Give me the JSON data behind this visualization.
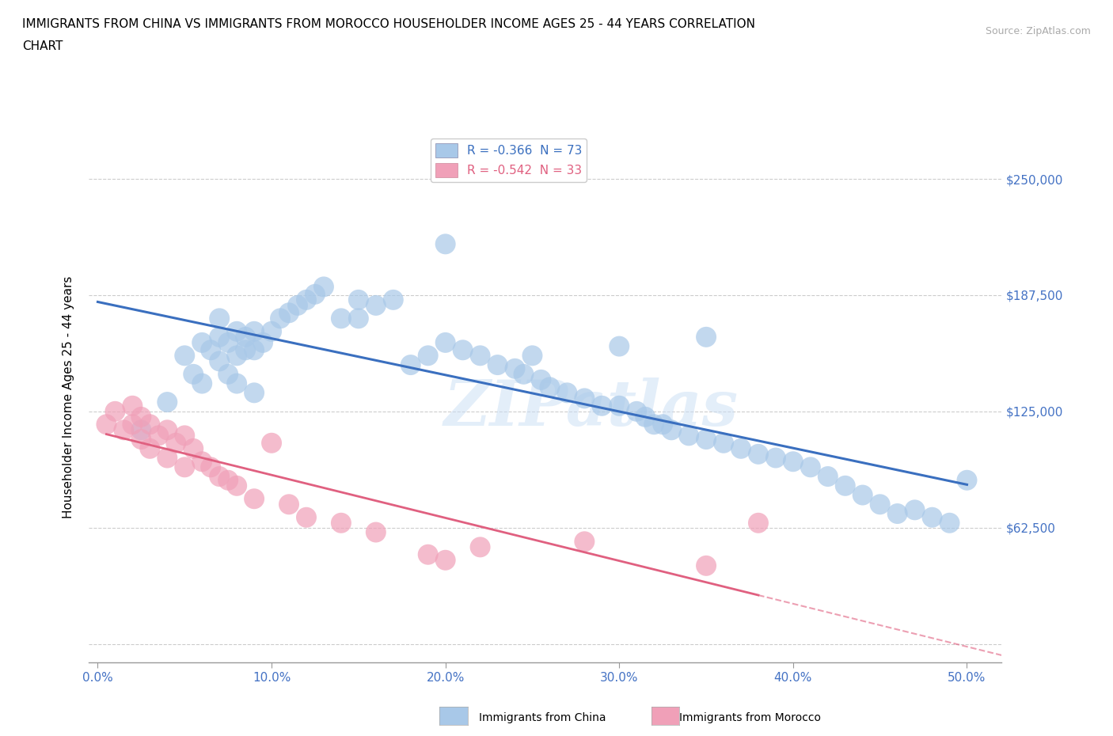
{
  "title_line1": "IMMIGRANTS FROM CHINA VS IMMIGRANTS FROM MOROCCO HOUSEHOLDER INCOME AGES 25 - 44 YEARS CORRELATION",
  "title_line2": "CHART",
  "source_text": "Source: ZipAtlas.com",
  "ylabel": "Householder Income Ages 25 - 44 years",
  "xlim": [
    -0.005,
    0.52
  ],
  "ylim": [
    -10000,
    275000
  ],
  "yticks": [
    0,
    62500,
    125000,
    187500,
    250000
  ],
  "ytick_labels": [
    "",
    "$62,500",
    "$125,000",
    "$187,500",
    "$250,000"
  ],
  "xtick_labels": [
    "0.0%",
    "10.0%",
    "20.0%",
    "30.0%",
    "40.0%",
    "50.0%"
  ],
  "xticks": [
    0.0,
    0.1,
    0.2,
    0.3,
    0.4,
    0.5
  ],
  "china_color": "#a8c8e8",
  "morocco_color": "#f0a0b8",
  "china_line_color": "#3a6fbf",
  "morocco_line_color": "#e06080",
  "legend_china_R": "R = -0.366",
  "legend_china_N": "N = 73",
  "legend_morocco_R": "R = -0.542",
  "legend_morocco_N": "N = 33",
  "watermark": "ZIPatlas",
  "china_x": [
    0.025,
    0.04,
    0.05,
    0.055,
    0.06,
    0.06,
    0.065,
    0.07,
    0.07,
    0.075,
    0.075,
    0.08,
    0.08,
    0.085,
    0.085,
    0.09,
    0.09,
    0.095,
    0.1,
    0.105,
    0.11,
    0.115,
    0.12,
    0.125,
    0.13,
    0.14,
    0.15,
    0.16,
    0.17,
    0.18,
    0.19,
    0.2,
    0.21,
    0.22,
    0.23,
    0.24,
    0.245,
    0.25,
    0.255,
    0.26,
    0.27,
    0.28,
    0.29,
    0.3,
    0.31,
    0.315,
    0.32,
    0.325,
    0.33,
    0.34,
    0.35,
    0.36,
    0.37,
    0.38,
    0.39,
    0.4,
    0.41,
    0.42,
    0.43,
    0.44,
    0.45,
    0.46,
    0.47,
    0.48,
    0.49,
    0.5,
    0.07,
    0.08,
    0.09,
    0.15,
    0.2,
    0.3,
    0.35
  ],
  "china_y": [
    115000,
    130000,
    155000,
    145000,
    162000,
    140000,
    158000,
    165000,
    152000,
    162000,
    145000,
    168000,
    155000,
    165000,
    158000,
    168000,
    158000,
    162000,
    168000,
    175000,
    178000,
    182000,
    185000,
    188000,
    192000,
    175000,
    185000,
    182000,
    185000,
    150000,
    155000,
    162000,
    158000,
    155000,
    150000,
    148000,
    145000,
    155000,
    142000,
    138000,
    135000,
    132000,
    128000,
    128000,
    125000,
    122000,
    118000,
    118000,
    115000,
    112000,
    110000,
    108000,
    105000,
    102000,
    100000,
    98000,
    95000,
    90000,
    85000,
    80000,
    75000,
    70000,
    72000,
    68000,
    65000,
    88000,
    175000,
    140000,
    135000,
    175000,
    215000,
    160000,
    165000
  ],
  "morocco_x": [
    0.005,
    0.01,
    0.015,
    0.02,
    0.02,
    0.025,
    0.025,
    0.03,
    0.03,
    0.035,
    0.04,
    0.04,
    0.045,
    0.05,
    0.05,
    0.055,
    0.06,
    0.065,
    0.07,
    0.075,
    0.08,
    0.09,
    0.1,
    0.11,
    0.12,
    0.14,
    0.16,
    0.19,
    0.2,
    0.22,
    0.28,
    0.35,
    0.38
  ],
  "morocco_y": [
    118000,
    125000,
    115000,
    128000,
    118000,
    122000,
    110000,
    118000,
    105000,
    112000,
    115000,
    100000,
    108000,
    112000,
    95000,
    105000,
    98000,
    95000,
    90000,
    88000,
    85000,
    78000,
    108000,
    75000,
    68000,
    65000,
    60000,
    48000,
    45000,
    52000,
    55000,
    42000,
    65000
  ]
}
